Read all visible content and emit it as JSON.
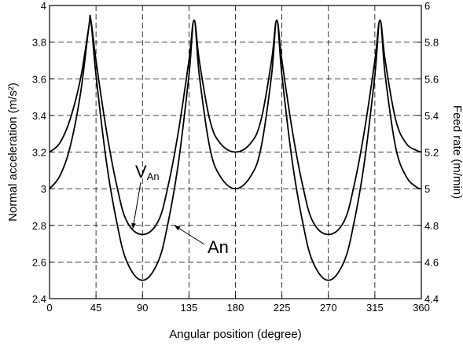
{
  "chart_data": {
    "type": "line",
    "xlabel": "Angular position (degree)",
    "ylabel_left": "Normal acceleration (m/s²)",
    "ylabel_right": "Feed rate (m/min)",
    "x_ticks": [
      0,
      45,
      90,
      135,
      180,
      225,
      270,
      315,
      360
    ],
    "y_left_ticks": [
      2.4,
      2.6,
      2.8,
      3,
      3.2,
      3.4,
      3.6,
      3.8,
      4
    ],
    "y_right_ticks": [
      4.4,
      4.6,
      4.8,
      5,
      5.2,
      5.4,
      5.6,
      5.8,
      6
    ],
    "xlim": [
      0,
      360
    ],
    "ylim_left": [
      2.4,
      4
    ],
    "ylim_right": [
      4.4,
      6
    ],
    "grid": true,
    "series": [
      {
        "name": "An",
        "axis": "left",
        "x": [
          0,
          10,
          20,
          30,
          38,
          40,
          45,
          55,
          65,
          75,
          90,
          105,
          115,
          125,
          135,
          140,
          145,
          155,
          165,
          180,
          195,
          205,
          215,
          220,
          225,
          235,
          245,
          255,
          270,
          285,
          295,
          305,
          315,
          320,
          325,
          335,
          345,
          355,
          360
        ],
        "y": [
          3.0,
          3.07,
          3.23,
          3.52,
          3.88,
          3.92,
          3.62,
          3.15,
          2.82,
          2.6,
          2.5,
          2.6,
          2.82,
          3.15,
          3.62,
          3.92,
          3.62,
          3.23,
          3.07,
          3.0,
          3.07,
          3.23,
          3.62,
          3.92,
          3.62,
          3.15,
          2.82,
          2.6,
          2.5,
          2.6,
          2.82,
          3.15,
          3.62,
          3.92,
          3.62,
          3.23,
          3.07,
          3.01,
          3.0
        ]
      },
      {
        "name": "VAn",
        "axis": "left",
        "x": [
          0,
          10,
          20,
          30,
          38,
          40,
          45,
          55,
          65,
          75,
          90,
          105,
          115,
          125,
          135,
          140,
          145,
          155,
          165,
          180,
          195,
          205,
          215,
          220,
          225,
          235,
          245,
          255,
          270,
          285,
          295,
          305,
          315,
          320,
          325,
          335,
          345,
          355,
          360
        ],
        "y": [
          3.2,
          3.25,
          3.38,
          3.6,
          3.88,
          3.92,
          3.7,
          3.32,
          3.02,
          2.82,
          2.75,
          2.82,
          3.02,
          3.32,
          3.7,
          3.92,
          3.7,
          3.38,
          3.25,
          3.2,
          3.25,
          3.38,
          3.7,
          3.92,
          3.7,
          3.32,
          3.02,
          2.82,
          2.75,
          2.82,
          3.02,
          3.32,
          3.7,
          3.92,
          3.7,
          3.38,
          3.25,
          3.21,
          3.2
        ]
      }
    ],
    "annotations": [
      {
        "main": "V",
        "sub": "An"
      },
      {
        "main": "An"
      }
    ]
  }
}
